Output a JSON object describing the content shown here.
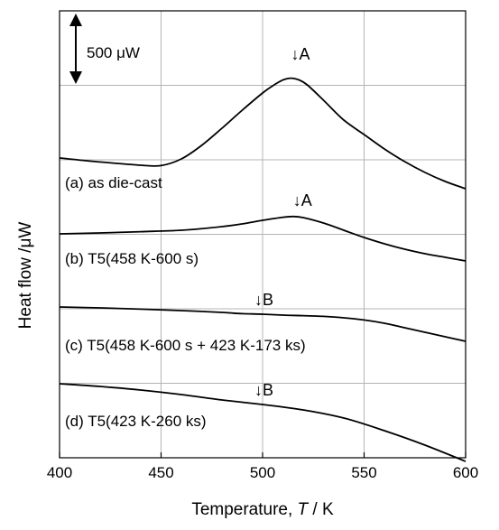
{
  "chart_data": {
    "type": "line",
    "xlabel_prefix": "Temperature, ",
    "xlabel_symbol": "T",
    "xlabel_suffix": " / K",
    "ylabel": "Heat flow /μW",
    "xlim": [
      400,
      600
    ],
    "x_ticks": [
      "400",
      "450",
      "500",
      "550",
      "600"
    ],
    "y_tick_labels": false,
    "grid": true,
    "scale_bar_label": "500 μW",
    "scale_bar_value": 500,
    "series": [
      {
        "name": "(a) as die-cast",
        "peak_label": "↓A",
        "peak_x": 514,
        "x": [
          400,
          420,
          440,
          450,
          460,
          470,
          480,
          490,
          500,
          505,
          510,
          514,
          518,
          522,
          530,
          540,
          550,
          560,
          570,
          580,
          590,
          600
        ],
        "y": [
          0,
          -22,
          -40,
          -42,
          -5,
          70,
          165,
          265,
          360,
          400,
          432,
          442,
          432,
          405,
          320,
          210,
          130,
          50,
          -20,
          -80,
          -130,
          -170
        ]
      },
      {
        "name": "(b) T5(458 K-600 s)",
        "peak_label": "↓A",
        "peak_x": 515,
        "x": [
          400,
          420,
          440,
          460,
          480,
          490,
          500,
          510,
          515,
          520,
          530,
          540,
          550,
          560,
          570,
          580,
          590,
          600
        ],
        "y": [
          0,
          5,
          12,
          20,
          40,
          55,
          75,
          92,
          96,
          90,
          60,
          20,
          -20,
          -55,
          -85,
          -110,
          -130,
          -150
        ]
      },
      {
        "name": "(c) T5(458 K-600 s + 423 K-173 ks)",
        "peak_label": "↓B",
        "peak_x": 496,
        "x": [
          400,
          420,
          440,
          460,
          480,
          490,
          500,
          510,
          520,
          530,
          540,
          550,
          560,
          570,
          580,
          590,
          600
        ],
        "y": [
          0,
          -5,
          -12,
          -20,
          -30,
          -37,
          -40,
          -45,
          -48,
          -52,
          -60,
          -72,
          -90,
          -115,
          -140,
          -165,
          -190
        ]
      },
      {
        "name": "(d) T5(423 K-260 ks)",
        "peak_label": "↓B",
        "peak_x": 496,
        "x": [
          400,
          420,
          440,
          460,
          480,
          500,
          520,
          540,
          560,
          580,
          600
        ],
        "y": [
          0,
          -15,
          -35,
          -60,
          -90,
          -115,
          -145,
          -190,
          -260,
          -340,
          -430
        ]
      }
    ]
  }
}
